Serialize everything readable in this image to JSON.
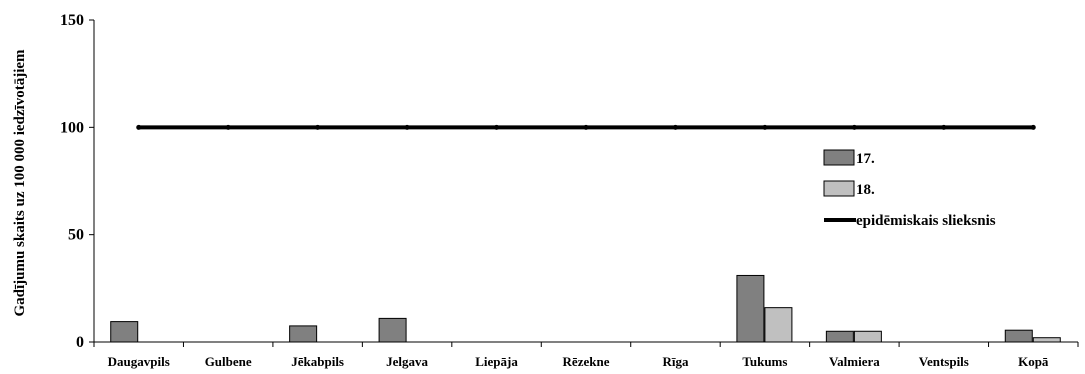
{
  "chart_data": {
    "type": "bar",
    "title": "",
    "xlabel": "",
    "ylabel": "Gadījumu skaits uz 100 000 iedzīvotājiem",
    "ylim": [
      0,
      150
    ],
    "yticks": [
      0,
      50,
      100,
      150
    ],
    "grid": false,
    "legend_position": "right",
    "categories": [
      "Daugavpils",
      "Gulbene",
      "Jēkabpils",
      "Jelgava",
      "Liepāja",
      "Rēzekne",
      "Rīga",
      "Tukums",
      "Valmiera",
      "Ventspils",
      "Kopā"
    ],
    "series": [
      {
        "name": "17.",
        "type": "bar",
        "color": "#808080",
        "values": [
          9.5,
          0,
          7.5,
          11,
          0,
          0,
          0,
          31,
          5,
          0,
          5.5
        ]
      },
      {
        "name": "18.",
        "type": "bar",
        "color": "#c0c0c0",
        "values": [
          0,
          0,
          0,
          0,
          0,
          0,
          0,
          16,
          5,
          0,
          2
        ]
      },
      {
        "name": "epidēmiskais slieksnis",
        "type": "line",
        "color": "#000000",
        "values": [
          100,
          100,
          100,
          100,
          100,
          100,
          100,
          100,
          100,
          100,
          100
        ]
      }
    ]
  }
}
